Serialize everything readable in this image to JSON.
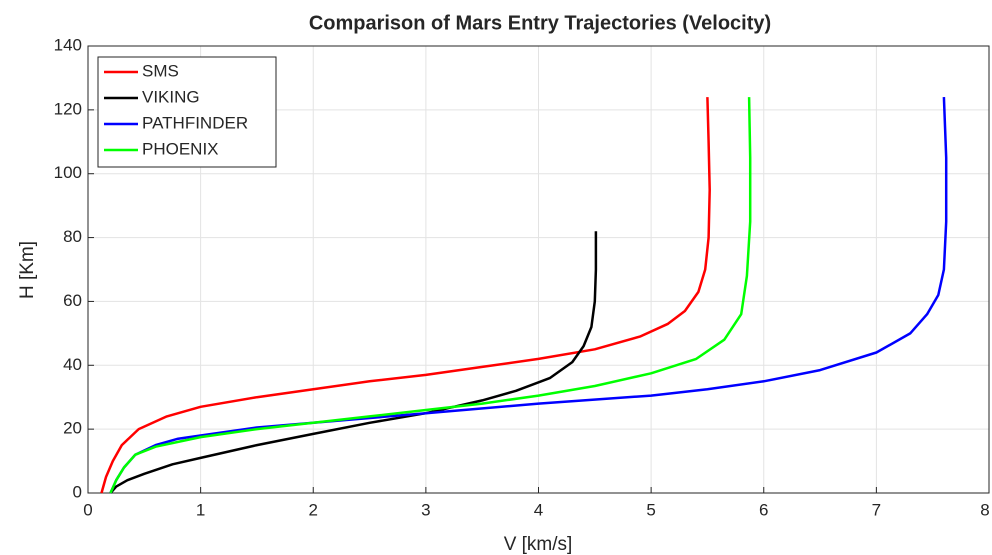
{
  "chart_data": {
    "type": "line",
    "title": "Comparison of Mars Entry Trajectories (Velocity)",
    "xlabel": "V [km/s]",
    "ylabel": "H [Km]",
    "xlim": [
      0,
      8
    ],
    "xticks": [
      0,
      1,
      2,
      3,
      4,
      5,
      6,
      7,
      8
    ],
    "ylim": [
      0,
      140
    ],
    "yticks": [
      0,
      20,
      40,
      60,
      80,
      100,
      120,
      140
    ],
    "grid": true,
    "legend": "upper left",
    "series": [
      {
        "name": "SMS",
        "color": "#ff0000",
        "x": [
          0.12,
          0.16,
          0.22,
          0.3,
          0.45,
          0.7,
          1,
          1.5,
          2,
          2.5,
          3,
          3.5,
          4,
          4.5,
          4.9,
          5.15,
          5.3,
          5.42,
          5.48,
          5.51,
          5.52,
          5.51,
          5.5
        ],
        "values": [
          0,
          5,
          10,
          15,
          20,
          24,
          27,
          30,
          32.5,
          35,
          37,
          39.5,
          42,
          45,
          49,
          53,
          57,
          63,
          70,
          80,
          95,
          110,
          124
        ]
      },
      {
        "name": "VIKING",
        "color": "#000000",
        "x": [
          0.2,
          0.25,
          0.35,
          0.5,
          0.75,
          1,
          1.5,
          2,
          2.5,
          3,
          3.5,
          3.8,
          4.1,
          4.3,
          4.4,
          4.47,
          4.5,
          4.51,
          4.51
        ],
        "values": [
          0,
          2,
          4,
          6,
          9,
          11,
          15,
          18.5,
          22,
          25,
          29,
          32,
          36,
          41,
          46,
          52,
          60,
          70,
          82
        ]
      },
      {
        "name": "PATHFINDER",
        "color": "#0000ff",
        "x": [
          0.2,
          0.25,
          0.32,
          0.42,
          0.6,
          0.8,
          1,
          1.5,
          2,
          3,
          4,
          5,
          5.5,
          6,
          6.5,
          7,
          7.3,
          7.45,
          7.55,
          7.6,
          7.62,
          7.62,
          7.6
        ],
        "values": [
          0,
          4,
          8,
          12,
          15,
          17,
          18,
          20.5,
          22,
          25,
          28,
          30.5,
          32.5,
          35,
          38.5,
          44,
          50,
          56,
          62,
          70,
          85,
          105,
          124
        ]
      },
      {
        "name": "PHOENIX",
        "color": "#00ff00",
        "x": [
          0.2,
          0.25,
          0.32,
          0.42,
          0.6,
          0.8,
          1,
          1.5,
          2,
          2.5,
          3,
          3.5,
          4,
          4.5,
          5,
          5.4,
          5.65,
          5.8,
          5.85,
          5.88,
          5.88,
          5.87
        ],
        "values": [
          0,
          4,
          8,
          12,
          14.5,
          16,
          17.5,
          20,
          22,
          24,
          26,
          28,
          30.5,
          33.5,
          37.5,
          42,
          48,
          56,
          68,
          85,
          105,
          124
        ]
      }
    ]
  }
}
